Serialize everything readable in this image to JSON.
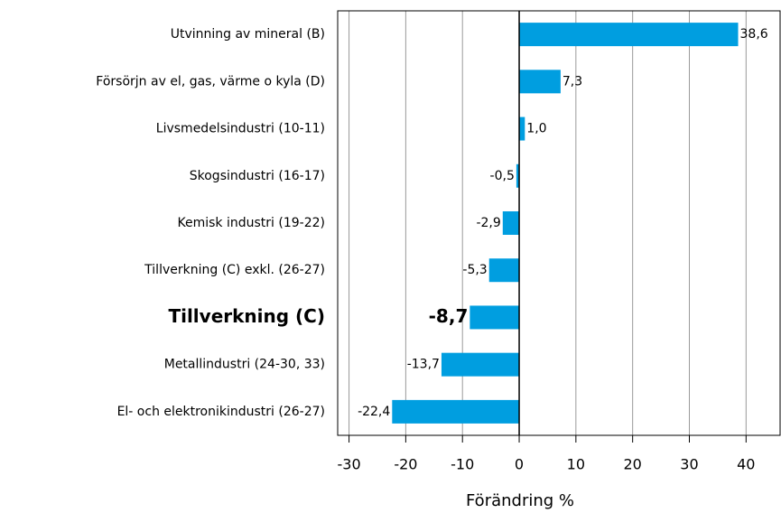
{
  "chart_data": {
    "type": "bar",
    "orientation": "horizontal",
    "categories": [
      "Utvinning av mineral (B)",
      "Försörjn av el, gas, värme o kyla (D)",
      "Livsmedelsindustri (10-11)",
      "Skogsindustri (16-17)",
      "Kemisk industri (19-22)",
      "Tillverkning (C) exkl. (26-27)",
      "Tillverkning (C)",
      "Metallindustri (24-30, 33)",
      "El- och elektronikindustri (26-27)"
    ],
    "values": [
      38.6,
      7.3,
      1.0,
      -0.5,
      -2.9,
      -5.3,
      -8.7,
      -13.7,
      -22.4
    ],
    "value_labels": [
      "38,6",
      "7,3",
      "1,0",
      "-0,5",
      "-2,9",
      "-5,3",
      "-8,7",
      "-13,7",
      "-22,4"
    ],
    "highlight_index": 6,
    "color": "#009ee0",
    "xlim": [
      -32,
      46
    ],
    "xticks": [
      -30,
      -20,
      -10,
      0,
      10,
      20,
      30,
      40
    ],
    "xlabel": "Förändring %",
    "grid": true
  }
}
